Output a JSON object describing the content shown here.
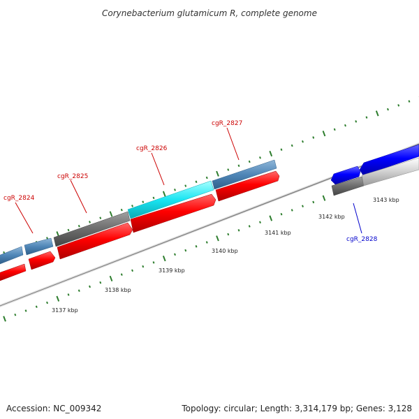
{
  "title": "Corynebacterium glutamicum R, complete genome",
  "footer": {
    "accession": "Accession: NC_009342",
    "summary": "Topology: circular; Length: 3,314,179 bp; Genes: 3,128"
  },
  "ticks": [
    {
      "label": "3137 kbp"
    },
    {
      "label": "3138 kbp"
    },
    {
      "label": "3139 kbp"
    },
    {
      "label": "3140 kbp"
    },
    {
      "label": "3141 kbp"
    },
    {
      "label": "3142 kbp"
    },
    {
      "label": "3143 kbp"
    }
  ],
  "genes": [
    {
      "label": "cgR_2824",
      "color": "#cc0000"
    },
    {
      "label": "cgR_2825",
      "color": "#cc0000"
    },
    {
      "label": "cgR_2826",
      "color": "#cc0000"
    },
    {
      "label": "cgR_2827",
      "color": "#cc0000"
    },
    {
      "label": "cgR_2828",
      "color": "#0000cc"
    }
  ],
  "colors": {
    "forward_cds": "#e00000",
    "reverse_cds": "#0000ee",
    "steel_blue_track": "#4f86b7",
    "cyan_track": "#19e5f2",
    "gray_track": "#6d6d6d",
    "light_gray_track": "#cfcfcf",
    "backbone": "#8a8a8a",
    "tick_green": "#2d7d2d"
  }
}
